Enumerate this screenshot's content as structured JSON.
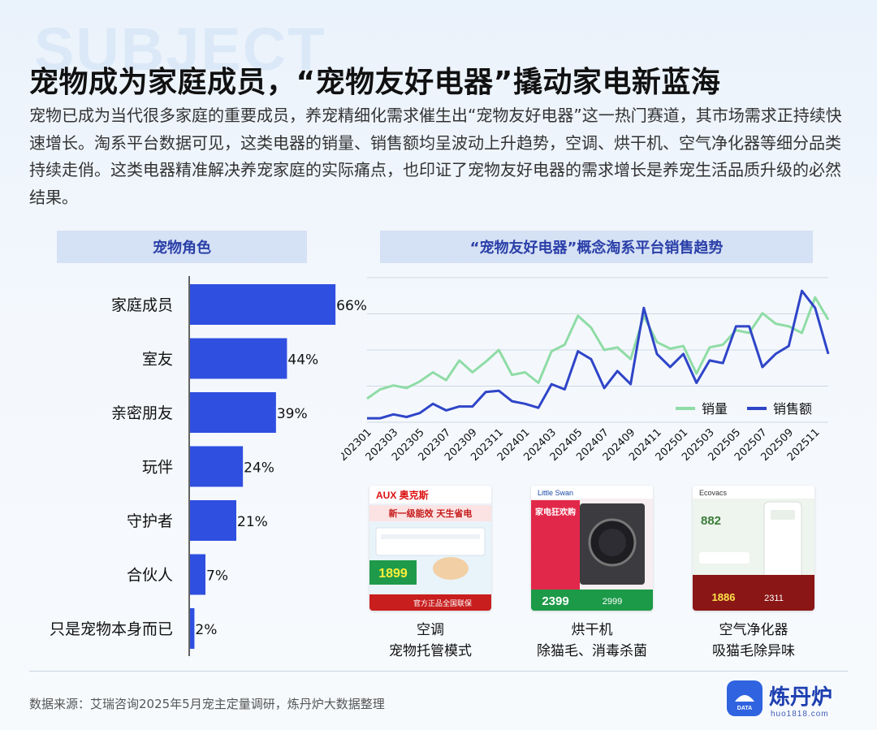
{
  "watermark": "SUBJECT",
  "title": "宠物成为家庭成员，“宠物友好电器”撬动家电新蓝海",
  "description": "宠物已成为当代很多家庭的重要成员，养宠精细化需求催生出“宠物友好电器”这一热门赛道，其市场需求正持续快速增长。淘系平台数据可见，这类电器的销量、销售额均呈波动上升趋势，空调、烘干机、空气净化器等细分品类持续走俏。这类电器精准解决养宠家庭的实际痛点，也印证了宠物友好电器的需求增长是养宠生活品质升级的必然结果。",
  "colors": {
    "bar": "#2f4fe0",
    "sales_volume": "#8fdca6",
    "sales_amount": "#2f45c8",
    "header_bg": "#d5e1f4"
  },
  "chart_data": [
    {
      "type": "bar",
      "orientation": "horizontal",
      "title": "宠物角色",
      "categories": [
        "家庭成员",
        "室友",
        "亲密朋友",
        "玩伴",
        "守护者",
        "合伙人",
        "只是宠物本身而已"
      ],
      "values": [
        66,
        44,
        39,
        24,
        21,
        7,
        2
      ],
      "labels": [
        "66%",
        "44%",
        "39%",
        "24%",
        "21%",
        "7%",
        "2%"
      ],
      "xlim": [
        0,
        70
      ]
    },
    {
      "type": "line",
      "title": "“宠物友好电器”概念淘系平台销售趋势",
      "x": [
        "202301",
        "202302",
        "202303",
        "202304",
        "202305",
        "202306",
        "202307",
        "202308",
        "202309",
        "202310",
        "202311",
        "202312",
        "202401",
        "202402",
        "202403",
        "202404",
        "202405",
        "202406",
        "202407",
        "202408",
        "202409",
        "202410",
        "202411",
        "202412",
        "202501",
        "202502",
        "202503",
        "202504",
        "202505",
        "202506",
        "202507",
        "202508",
        "202509",
        "202510",
        "202511",
        "202512"
      ],
      "x_tick_labels": [
        "202301",
        "202303",
        "202305",
        "202307",
        "202309",
        "202311",
        "202401",
        "202403",
        "202405",
        "202407",
        "202409",
        "202411",
        "202501",
        "202503",
        "202505",
        "202507",
        "202509",
        "202511"
      ],
      "series": [
        {
          "name": "销量",
          "color": "#8fdca6",
          "values": [
            18,
            25,
            28,
            26,
            31,
            38,
            32,
            47,
            38,
            46,
            55,
            36,
            38,
            30,
            54,
            59,
            81,
            72,
            55,
            57,
            48,
            81,
            61,
            56,
            58,
            37,
            57,
            59,
            70,
            68,
            83,
            75,
            73,
            68,
            95,
            78
          ]
        },
        {
          "name": "销售额",
          "color": "#2f45c8",
          "values": [
            3,
            3,
            6,
            4,
            7,
            14,
            9,
            12,
            12,
            23,
            24,
            16,
            14,
            11,
            29,
            25,
            54,
            48,
            26,
            39,
            29,
            87,
            52,
            42,
            52,
            30,
            47,
            45,
            73,
            73,
            42,
            52,
            58,
            100,
            87,
            52
          ]
        }
      ],
      "ylim": [
        0,
        110
      ],
      "grid": true,
      "legend": "bottom-right"
    }
  ],
  "products": [
    {
      "caption_line1": "空调",
      "caption_line2": "宠物托管模式",
      "brand": "AUX 奥克斯",
      "headline": "新一级能效 天生省电",
      "price": "1899",
      "tag": "官方正品全国联保"
    },
    {
      "caption_line1": "烘干机",
      "caption_line2": "除猫毛、消毒杀菌",
      "brand": "Little Swan",
      "headline": "家电狂欢购",
      "price": "2399",
      "tag": "2999"
    },
    {
      "caption_line1": "空气净化器",
      "caption_line2": "吸猫毛除异味",
      "brand": "Ecovacs",
      "headline": "882",
      "price": "1886",
      "tag": "2311"
    }
  ],
  "footer": {
    "source": "数据来源：艾瑞咨询2025年5月宠主定量调研，炼丹炉大数据整理"
  },
  "logo": {
    "name": "炼丹炉",
    "url_text": "huo1818.com",
    "badge": "DATA"
  }
}
